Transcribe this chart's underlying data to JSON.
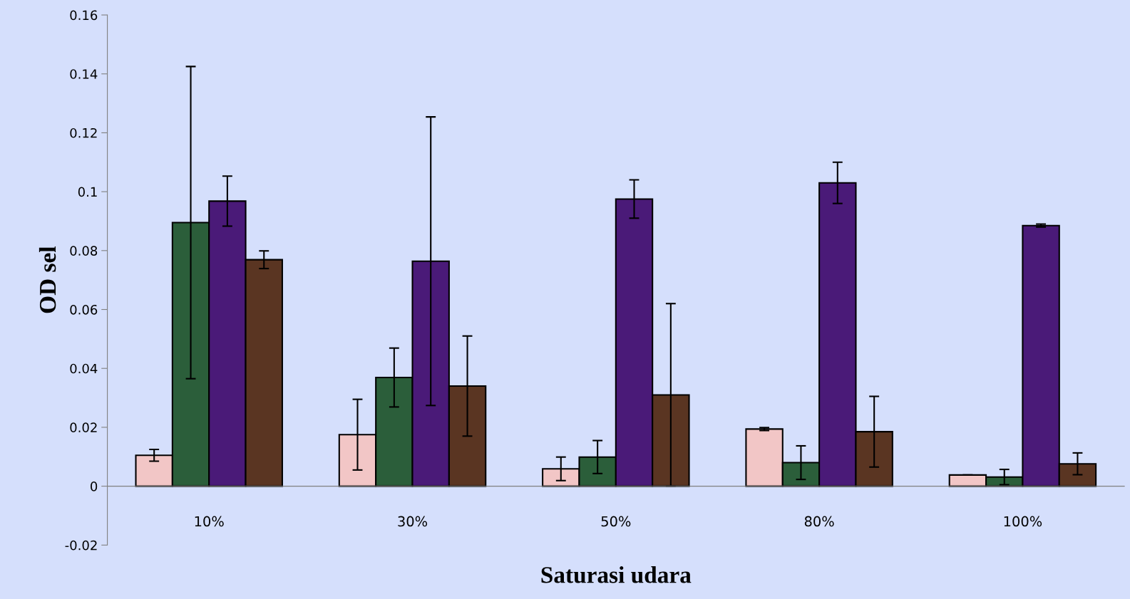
{
  "chart_data": {
    "type": "bar",
    "xlabel": "Saturasi udara",
    "ylabel": "OD sel",
    "categories": [
      "10%",
      "30%",
      "50%",
      "80%",
      "100%"
    ],
    "series": [
      {
        "color": "#f2c6c6",
        "values": [
          0.0105,
          0.0175,
          0.0059,
          0.0194,
          0.0038
        ],
        "errors": [
          0.002,
          0.012,
          0.004,
          0.0005,
          null
        ]
      },
      {
        "color": "#2b5e3a",
        "values": [
          0.0895,
          0.0369,
          0.0099,
          0.008,
          0.0031
        ],
        "errors": [
          0.053,
          0.01,
          0.0056,
          0.0057,
          0.0026
        ]
      },
      {
        "color": "#4a1a78",
        "values": [
          0.0968,
          0.0764,
          0.0975,
          0.103,
          0.0885
        ],
        "errors": [
          0.0085,
          0.049,
          0.0065,
          0.007,
          0.0005
        ]
      },
      {
        "color": "#5a3522",
        "values": [
          0.0769,
          0.034,
          0.031,
          0.0185,
          0.0076
        ],
        "errors": [
          0.003,
          0.017,
          0.031,
          0.012,
          0.0037
        ]
      }
    ],
    "ylim": [
      -0.02,
      0.16
    ],
    "yticks": [
      -0.02,
      0,
      0.02,
      0.04,
      0.06,
      0.08,
      0.1,
      0.12,
      0.14,
      0.16
    ],
    "legend": false
  }
}
